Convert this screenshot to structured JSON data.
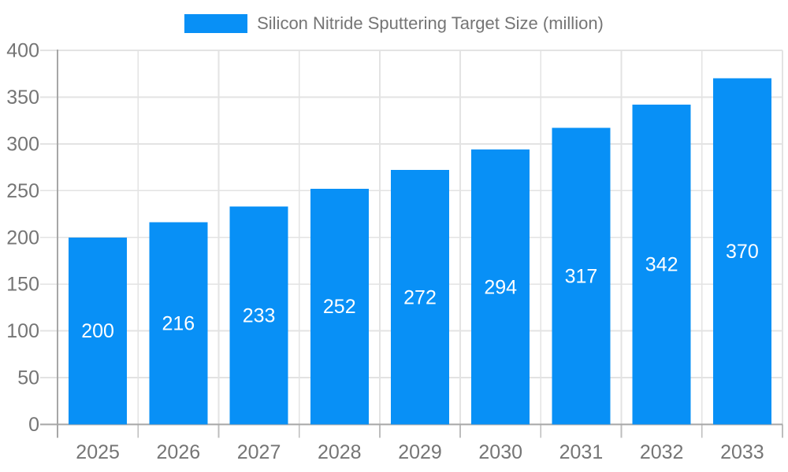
{
  "chart_data": {
    "type": "bar",
    "title": "Silicon Nitride Sputtering Target Size (million)",
    "categories": [
      "2025",
      "2026",
      "2027",
      "2028",
      "2029",
      "2030",
      "2031",
      "2032",
      "2033"
    ],
    "values": [
      200,
      216,
      233,
      252,
      272,
      294,
      317,
      342,
      370
    ],
    "series": [
      {
        "name": "Silicon Nitride Sputtering Target Size (million)",
        "values": [
          200,
          216,
          233,
          252,
          272,
          294,
          317,
          342,
          370
        ]
      }
    ],
    "xlabel": "",
    "ylabel": "",
    "ylim": [
      0,
      400
    ],
    "yticks": [
      0,
      50,
      100,
      150,
      200,
      250,
      300,
      350,
      400
    ],
    "grid": "on",
    "legend_position": "top",
    "bar_label_position": "inside-center",
    "colors": {
      "bar": "#0890f6",
      "bar_label": "#ffffff",
      "grid_line": "#e3e3e3",
      "axis_line": "#a6a6a6",
      "tick_line": "#bdbdbd",
      "axis_text": "#757575",
      "legend_text": "#757575",
      "background": "#ffffff"
    }
  },
  "legend": {
    "label": "Silicon Nitride Sputtering Target Size (million)"
  }
}
